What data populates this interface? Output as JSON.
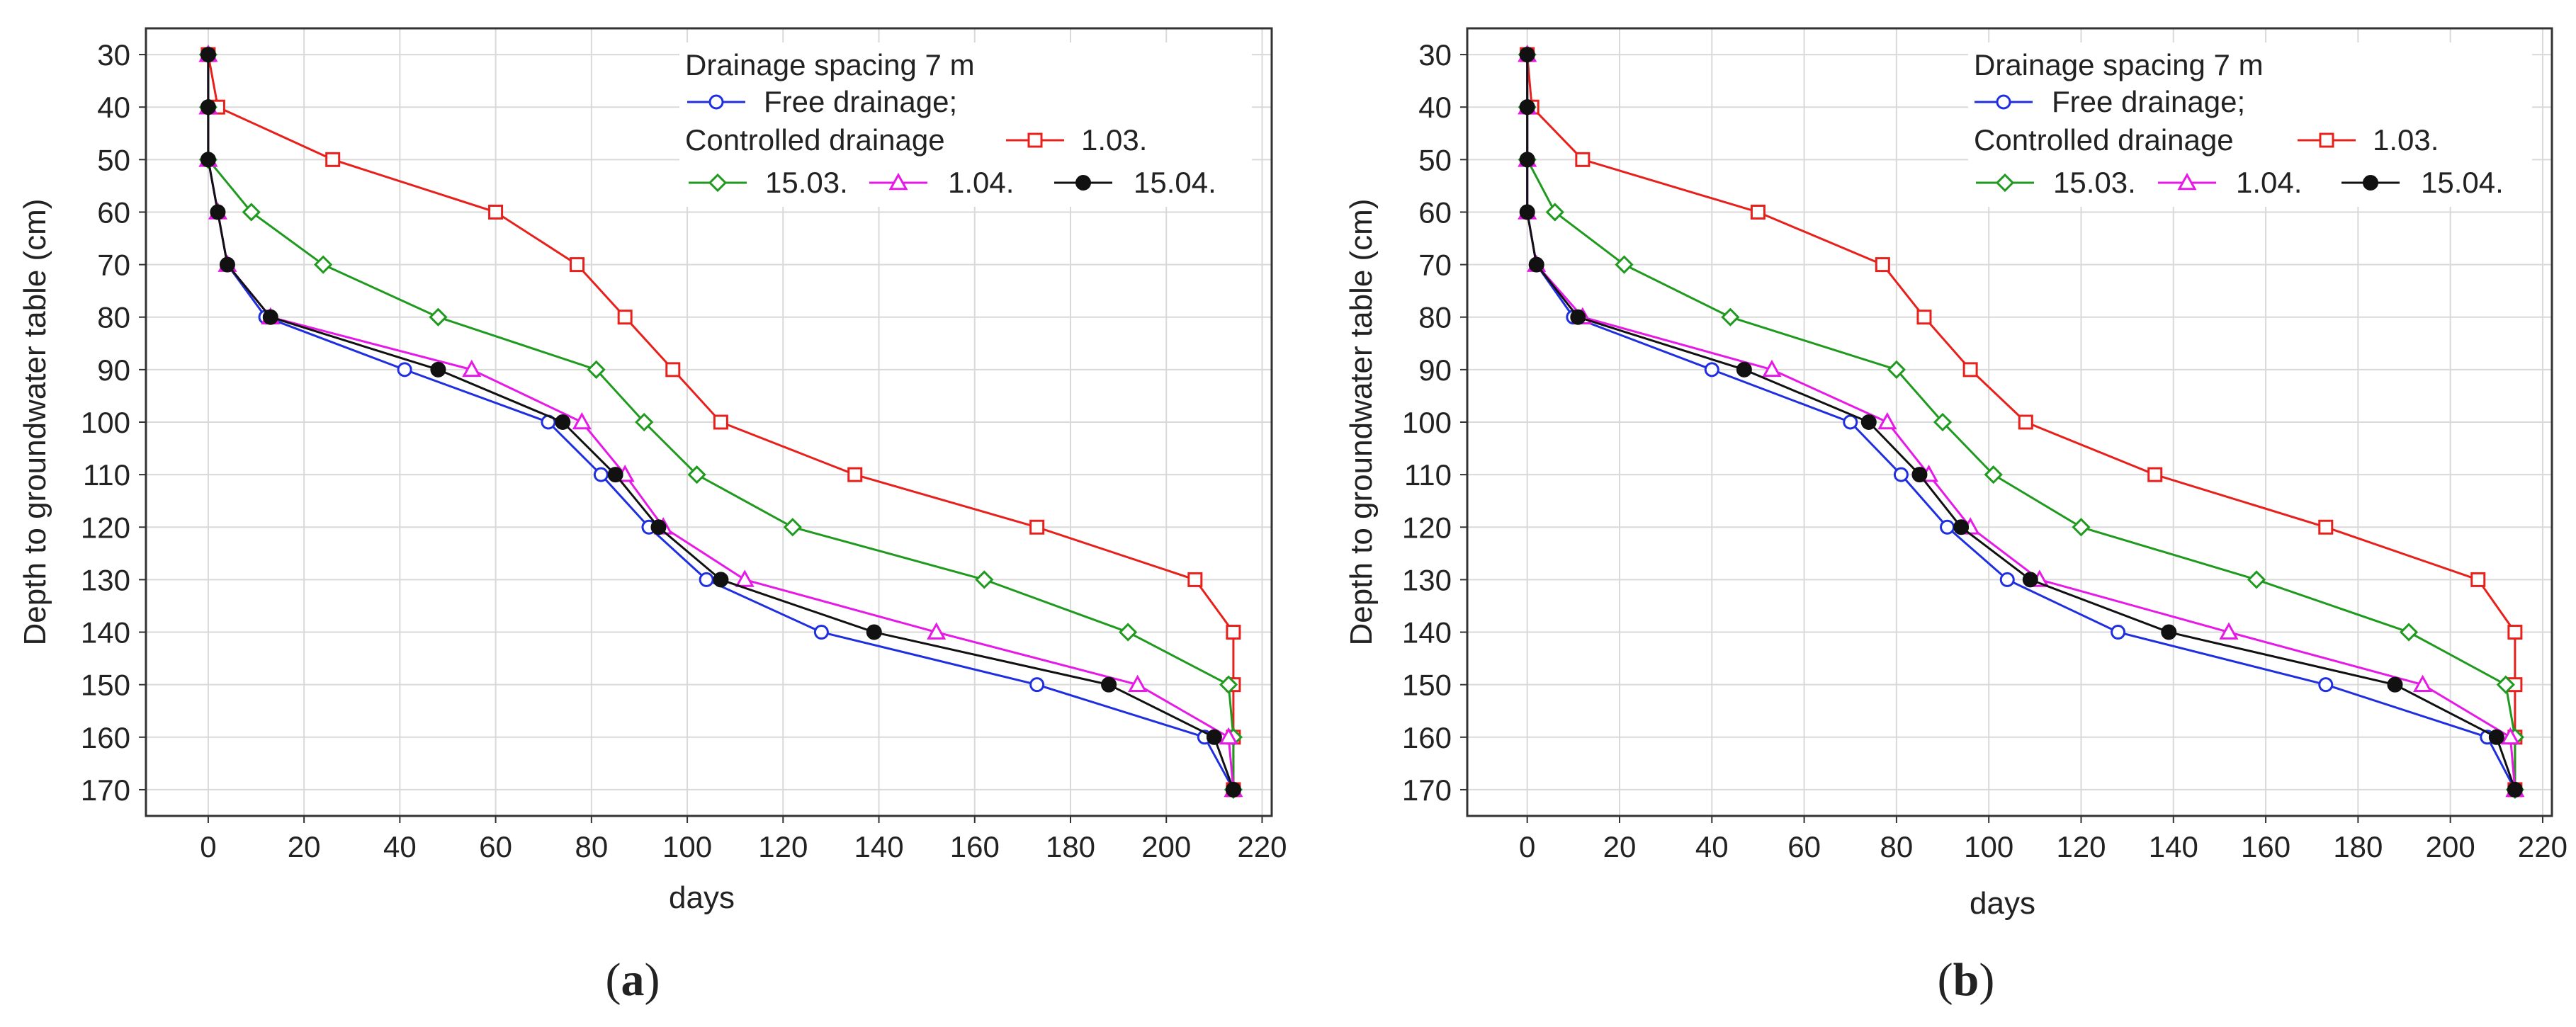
{
  "chart_data": [
    {
      "type": "line",
      "panel_label": "a",
      "xlabel": "days",
      "ylabel": "Depth to groundwater table (cm)",
      "xlim": [
        -13,
        222
      ],
      "ylim": [
        25,
        175
      ],
      "y_inverted": true,
      "xticks": [
        0,
        20,
        40,
        60,
        80,
        100,
        120,
        140,
        160,
        180,
        200,
        220
      ],
      "yticks": [
        30,
        40,
        50,
        60,
        70,
        80,
        90,
        100,
        110,
        120,
        130,
        140,
        150,
        160,
        170
      ],
      "grid": true,
      "legend": {
        "placement": "top-right",
        "heading": "Drainage spacing 7 m",
        "group_label": "Controlled drainage"
      },
      "series": [
        {
          "name": "Free drainage;",
          "color": "#1f2fe0",
          "marker": "circle",
          "x": [
            0,
            0,
            0,
            2,
            4,
            12,
            41,
            71,
            82,
            92,
            104,
            128,
            173,
            208,
            214
          ],
          "y": [
            30,
            40,
            50,
            60,
            70,
            80,
            90,
            100,
            110,
            120,
            130,
            140,
            150,
            160,
            170
          ]
        },
        {
          "name": "1.03.",
          "color": "#e8201c",
          "marker": "square",
          "x": [
            0,
            2,
            26,
            60,
            77,
            87,
            97,
            107,
            135,
            173,
            206,
            214,
            214,
            214,
            214
          ],
          "y": [
            30,
            40,
            50,
            60,
            70,
            80,
            90,
            100,
            110,
            120,
            130,
            140,
            150,
            160,
            170
          ]
        },
        {
          "name": "15.03.",
          "color": "#1f9a1f",
          "marker": "diamond",
          "x": [
            0,
            0,
            0,
            9,
            24,
            48,
            81,
            91,
            102,
            122,
            162,
            192,
            213,
            214,
            214
          ],
          "y": [
            30,
            40,
            50,
            60,
            70,
            80,
            90,
            100,
            110,
            120,
            130,
            140,
            150,
            160,
            170
          ]
        },
        {
          "name": "1.04.",
          "color": "#e619e6",
          "marker": "triangle",
          "x": [
            0,
            0,
            0,
            2,
            4,
            13,
            55,
            78,
            87,
            95,
            112,
            152,
            194,
            213,
            214
          ],
          "y": [
            30,
            40,
            50,
            60,
            70,
            80,
            90,
            100,
            110,
            120,
            130,
            140,
            150,
            160,
            170
          ]
        },
        {
          "name": "15.04.",
          "color": "#111111",
          "marker": "filled-circle",
          "x": [
            0,
            0,
            0,
            2,
            4,
            13,
            48,
            74,
            85,
            94,
            107,
            139,
            188,
            210,
            214
          ],
          "y": [
            30,
            40,
            50,
            60,
            70,
            80,
            90,
            100,
            110,
            120,
            130,
            140,
            150,
            160,
            170
          ]
        }
      ]
    },
    {
      "type": "line",
      "panel_label": "b",
      "xlabel": "days",
      "ylabel": "Depth to groundwater table (cm)",
      "xlim": [
        -13,
        222
      ],
      "ylim": [
        25,
        175
      ],
      "y_inverted": true,
      "xticks": [
        0,
        20,
        40,
        60,
        80,
        100,
        120,
        140,
        160,
        180,
        200,
        220
      ],
      "yticks": [
        30,
        40,
        50,
        60,
        70,
        80,
        90,
        100,
        110,
        120,
        130,
        140,
        150,
        160,
        170
      ],
      "grid": true,
      "legend": {
        "placement": "top-right",
        "heading": "Drainage spacing 7 m",
        "group_label": "Controlled drainage"
      },
      "series": [
        {
          "name": "Free drainage;",
          "color": "#1f2fe0",
          "marker": "circle",
          "x": [
            0,
            0,
            0,
            0,
            2,
            10,
            40,
            70,
            81,
            91,
            104,
            128,
            173,
            208,
            214
          ],
          "y": [
            30,
            40,
            50,
            60,
            70,
            80,
            90,
            100,
            110,
            120,
            130,
            140,
            150,
            160,
            170
          ]
        },
        {
          "name": "1.03.",
          "color": "#e8201c",
          "marker": "square",
          "x": [
            0,
            1,
            12,
            50,
            77,
            86,
            96,
            108,
            136,
            173,
            206,
            214,
            214,
            214,
            214
          ],
          "y": [
            30,
            40,
            50,
            60,
            70,
            80,
            90,
            100,
            110,
            120,
            130,
            140,
            150,
            160,
            170
          ]
        },
        {
          "name": "15.03.",
          "color": "#1f9a1f",
          "marker": "diamond",
          "x": [
            0,
            0,
            0,
            6,
            21,
            44,
            80,
            90,
            101,
            120,
            158,
            191,
            212,
            214,
            214
          ],
          "y": [
            30,
            40,
            50,
            60,
            70,
            80,
            90,
            100,
            110,
            120,
            130,
            140,
            150,
            160,
            170
          ]
        },
        {
          "name": "1.04.",
          "color": "#e619e6",
          "marker": "triangle",
          "x": [
            0,
            0,
            0,
            0,
            2,
            12,
            53,
            78,
            87,
            96,
            111,
            152,
            194,
            213,
            214
          ],
          "y": [
            30,
            40,
            50,
            60,
            70,
            80,
            90,
            100,
            110,
            120,
            130,
            140,
            150,
            160,
            170
          ]
        },
        {
          "name": "15.04.",
          "color": "#111111",
          "marker": "filled-circle",
          "x": [
            0,
            0,
            0,
            0,
            2,
            11,
            47,
            74,
            85,
            94,
            109,
            139,
            188,
            210,
            214
          ],
          "y": [
            30,
            40,
            50,
            60,
            70,
            80,
            90,
            100,
            110,
            120,
            130,
            140,
            150,
            160,
            170
          ]
        }
      ]
    }
  ]
}
